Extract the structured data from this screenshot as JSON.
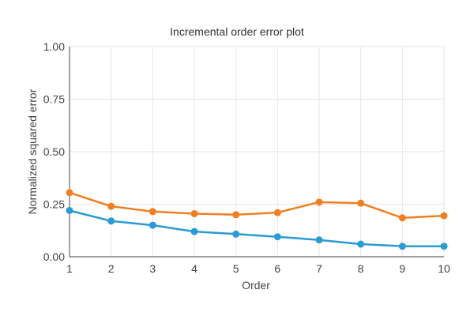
{
  "chart_data": {
    "type": "line",
    "title": "Incremental order error plot",
    "xlabel": "Order",
    "ylabel": "Normalized squared error",
    "x": [
      1,
      2,
      3,
      4,
      5,
      6,
      7,
      8,
      9,
      10
    ],
    "xlim": [
      1,
      10
    ],
    "ylim": [
      0,
      1
    ],
    "yticks": [
      "0.00",
      "0.25",
      "0.50",
      "0.75",
      "1.00"
    ],
    "xticks": [
      "1",
      "2",
      "3",
      "4",
      "5",
      "6",
      "7",
      "8",
      "9",
      "10"
    ],
    "grid": true,
    "series": [
      {
        "color": "#f07f22",
        "values": [
          0.305,
          0.24,
          0.215,
          0.205,
          0.2,
          0.21,
          0.26,
          0.255,
          0.185,
          0.195
        ]
      },
      {
        "color": "#2b9bd3",
        "values": [
          0.22,
          0.17,
          0.15,
          0.12,
          0.108,
          0.095,
          0.08,
          0.06,
          0.05,
          0.05
        ]
      }
    ]
  }
}
